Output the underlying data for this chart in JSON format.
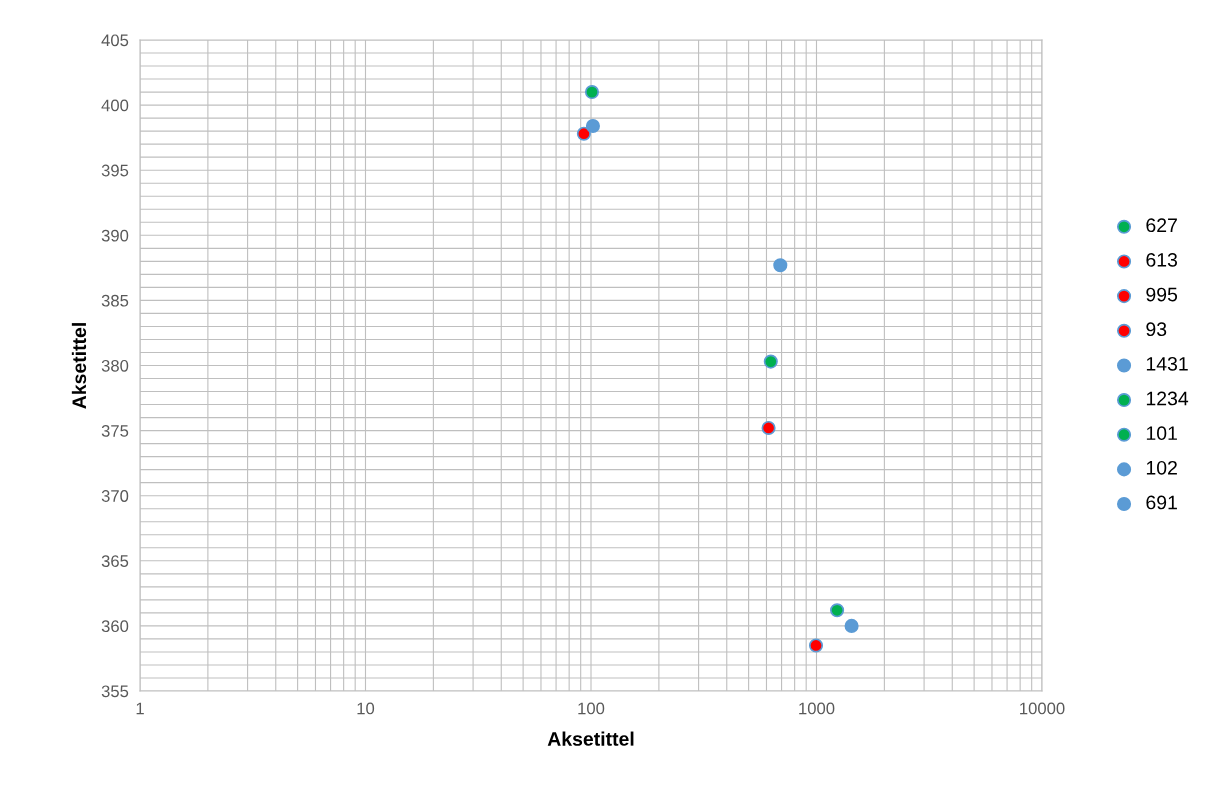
{
  "chart_data": {
    "type": "scatter",
    "xlabel": "Aksetittel",
    "ylabel": "Aksetittel",
    "log": "x",
    "xlim": [
      1,
      10000
    ],
    "xticks": [
      1,
      10,
      100,
      1000,
      10000
    ],
    "ylim": [
      355,
      405
    ],
    "yticks": [
      355,
      360,
      365,
      370,
      375,
      380,
      385,
      390,
      395,
      400,
      405
    ],
    "grid": true,
    "legend": "right",
    "marker": "circle",
    "series": [
      {
        "name": "627",
        "color": "#00b050",
        "x": [
          627
        ],
        "values": [
          380.3
        ]
      },
      {
        "name": "613",
        "color": "#ff0000",
        "x": [
          613
        ],
        "values": [
          375.2
        ]
      },
      {
        "name": "995",
        "color": "#ff0000",
        "x": [
          995
        ],
        "values": [
          358.5
        ]
      },
      {
        "name": "93",
        "color": "#ff0000",
        "x": [
          93
        ],
        "values": [
          397.8
        ]
      },
      {
        "name": "1431",
        "color": "#5b9bd5",
        "x": [
          1431
        ],
        "values": [
          360.0
        ]
      },
      {
        "name": "1234",
        "color": "#00b050",
        "x": [
          1234
        ],
        "values": [
          361.2
        ]
      },
      {
        "name": "101",
        "color": "#00b050",
        "x": [
          101
        ],
        "values": [
          401.0
        ]
      },
      {
        "name": "102",
        "color": "#5b9bd5",
        "x": [
          102
        ],
        "values": [
          398.4
        ]
      },
      {
        "name": "691",
        "color": "#5b9bd5",
        "x": [
          691
        ],
        "values": [
          387.7
        ]
      }
    ]
  }
}
